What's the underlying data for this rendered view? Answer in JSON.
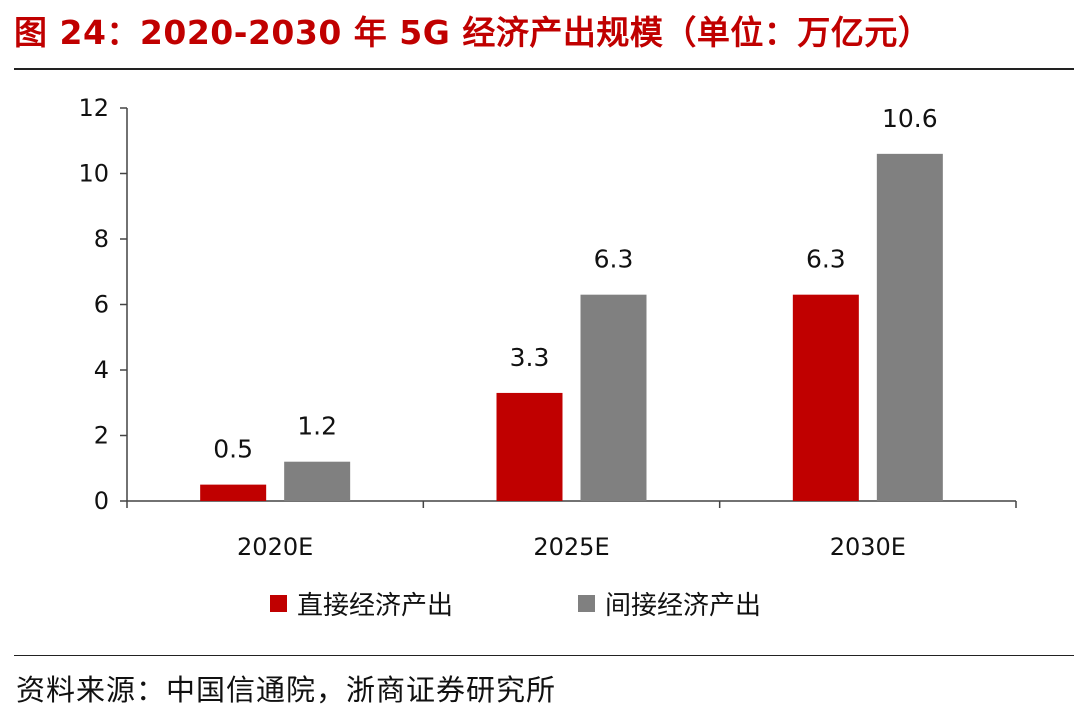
{
  "header": {
    "title": "图 24：2020-2030 年 5G 经济产出规模（单位：万亿元）"
  },
  "footer": {
    "source": "资料来源：中国信通院，浙商证券研究所"
  },
  "colors": {
    "title": "#c00000",
    "direct": "#c00000",
    "indirect": "#808080"
  },
  "chart_data": {
    "type": "bar",
    "title": "图 24：2020-2030 年 5G 经济产出规模（单位：万亿元）",
    "xlabel": "",
    "ylabel": "",
    "categories": [
      "2020E",
      "2025E",
      "2030E"
    ],
    "series": [
      {
        "name": "直接经济产出",
        "values": [
          0.5,
          3.3,
          6.3
        ],
        "labels": [
          "0.5",
          "3.3",
          "6.3"
        ]
      },
      {
        "name": "间接经济产出",
        "values": [
          1.2,
          6.3,
          10.6
        ],
        "labels": [
          "1.2",
          "6.3",
          "10.6"
        ]
      }
    ],
    "ylim": [
      0,
      12
    ],
    "yticks": [
      0,
      2,
      4,
      6,
      8,
      10,
      12
    ],
    "grid": false,
    "legend": "bottom"
  }
}
